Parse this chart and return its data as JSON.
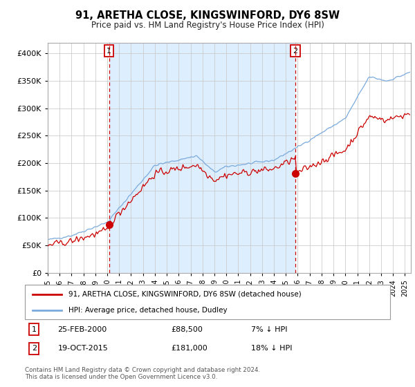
{
  "title": "91, ARETHA CLOSE, KINGSWINFORD, DY6 8SW",
  "subtitle": "Price paid vs. HM Land Registry's House Price Index (HPI)",
  "ylim": [
    0,
    420000
  ],
  "xlim_start": 1995.0,
  "xlim_end": 2025.5,
  "sale1_date": 2000.15,
  "sale1_price": 88500,
  "sale2_date": 2015.8,
  "sale2_price": 181000,
  "legend_line1": "91, ARETHA CLOSE, KINGSWINFORD, DY6 8SW (detached house)",
  "legend_line2": "HPI: Average price, detached house, Dudley",
  "table_rows": [
    [
      "1",
      "25-FEB-2000",
      "£88,500",
      "7% ↓ HPI"
    ],
    [
      "2",
      "19-OCT-2015",
      "£181,000",
      "18% ↓ HPI"
    ]
  ],
  "footnote": "Contains HM Land Registry data © Crown copyright and database right 2024.\nThis data is licensed under the Open Government Licence v3.0.",
  "red_color": "#cc0000",
  "blue_color": "#7aaadd",
  "shade_color": "#ddeeff",
  "grid_color": "#cccccc"
}
